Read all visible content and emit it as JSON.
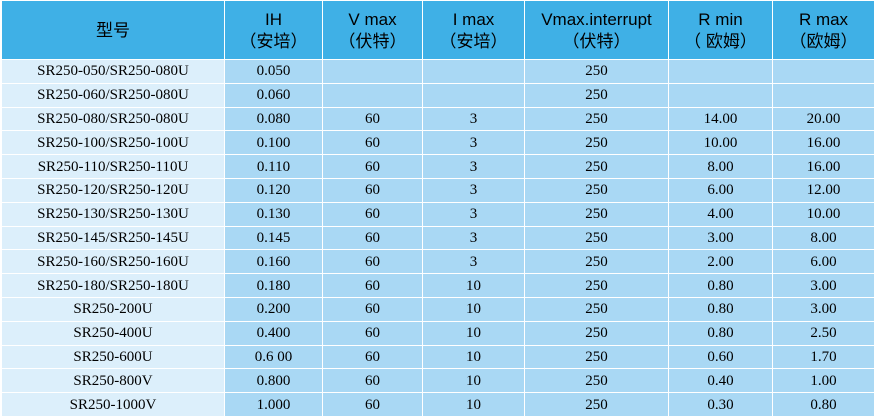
{
  "headers": [
    {
      "line1": "型号",
      "line2": ""
    },
    {
      "line1": "IH",
      "line2": "（安培）"
    },
    {
      "line1": "V max",
      "line2": "（伏特）"
    },
    {
      "line1": "I max",
      "line2": "（安培）"
    },
    {
      "line1": "Vmax.interrupt",
      "line2": "（伏特）"
    },
    {
      "line1": "R min",
      "line2": "（ 欧姆）"
    },
    {
      "line1": "R max",
      "line2": "（欧姆）"
    }
  ],
  "rows": [
    [
      "SR250-050/SR250-080U",
      "0.050",
      "",
      "",
      "250",
      "",
      ""
    ],
    [
      "SR250-060/SR250-080U",
      "0.060",
      "",
      "",
      "250",
      "",
      ""
    ],
    [
      "SR250-080/SR250-080U",
      "0.080",
      "60",
      "3",
      "250",
      "14.00",
      "20.00"
    ],
    [
      "SR250-100/SR250-100U",
      "0.100",
      "60",
      "3",
      "250",
      "10.00",
      "16.00"
    ],
    [
      "SR250-110/SR250-110U",
      "0.110",
      "60",
      "3",
      "250",
      "8.00",
      "16.00"
    ],
    [
      "SR250-120/SR250-120U",
      "0.120",
      "60",
      "3",
      "250",
      "6.00",
      "12.00"
    ],
    [
      "SR250-130/SR250-130U",
      "0.130",
      "60",
      "3",
      "250",
      "4.00",
      "10.00"
    ],
    [
      "SR250-145/SR250-145U",
      "0.145",
      "60",
      "3",
      "250",
      "3.00",
      "8.00"
    ],
    [
      "SR250-160/SR250-160U",
      "0.160",
      "60",
      "3",
      "250",
      "2.00",
      "6.00"
    ],
    [
      "SR250-180/SR250-180U",
      "0.180",
      "60",
      "10",
      "250",
      "0.80",
      "3.00"
    ],
    [
      "SR250-200U",
      "0.200",
      "60",
      "10",
      "250",
      "0.80",
      "3.00"
    ],
    [
      "SR250-400U",
      "0.400",
      "60",
      "10",
      "250",
      "0.80",
      "2.50"
    ],
    [
      "SR250-600U",
      "0.6 00",
      "60",
      "10",
      "250",
      "0.60",
      "1.70"
    ],
    [
      "SR250-800V",
      "0.800",
      "60",
      "10",
      "250",
      "0.40",
      "1.00"
    ],
    [
      "SR250-1000V",
      "1.000",
      "60",
      "10",
      "250",
      "0.30",
      "0.80"
    ]
  ],
  "colors": {
    "header_bg": "#3fb0e6",
    "model_col_bg": "#dceffb",
    "data_bg": "#a9d8f4",
    "border": "#ffffff"
  }
}
